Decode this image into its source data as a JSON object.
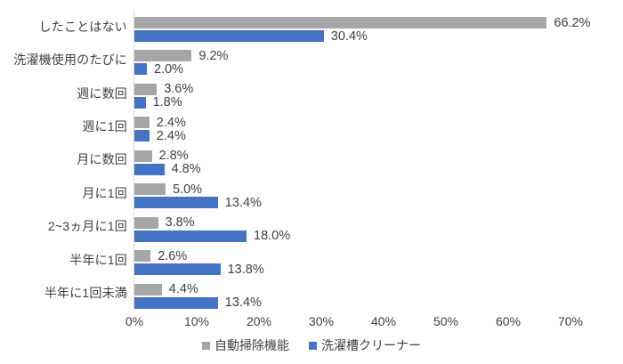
{
  "chart_data": {
    "type": "bar",
    "orientation": "horizontal",
    "title": "",
    "categories": [
      "したことはない",
      "洗濯機使用のたびに",
      "週に数回",
      "週に1回",
      "月に数回",
      "月に1回",
      "2~3ヵ月に1回",
      "半年に1回",
      "半年に1回未満"
    ],
    "series": [
      {
        "id": "auto-clean-function",
        "name": "自動掃除機能",
        "color": "#a6a6a6",
        "values": [
          66.2,
          9.2,
          3.6,
          2.4,
          2.8,
          5.0,
          3.8,
          2.6,
          4.4
        ]
      },
      {
        "id": "tub-cleaner",
        "name": "洗濯槽クリーナー",
        "color": "#4472c4",
        "values": [
          30.4,
          2.0,
          1.8,
          2.4,
          4.8,
          13.4,
          18.0,
          13.8,
          13.4
        ]
      }
    ],
    "value_suffix": "%",
    "value_decimals": 1,
    "x_axis": {
      "min": 0,
      "max": 70,
      "tick_step": 10,
      "ticks": [
        "0%",
        "10%",
        "20%",
        "30%",
        "40%",
        "50%",
        "60%",
        "70%"
      ]
    },
    "grid": false,
    "legend_position": "bottom",
    "colors": {
      "axis_line": "#d9d9d9",
      "text": "#404040",
      "background": "#ffffff"
    }
  }
}
